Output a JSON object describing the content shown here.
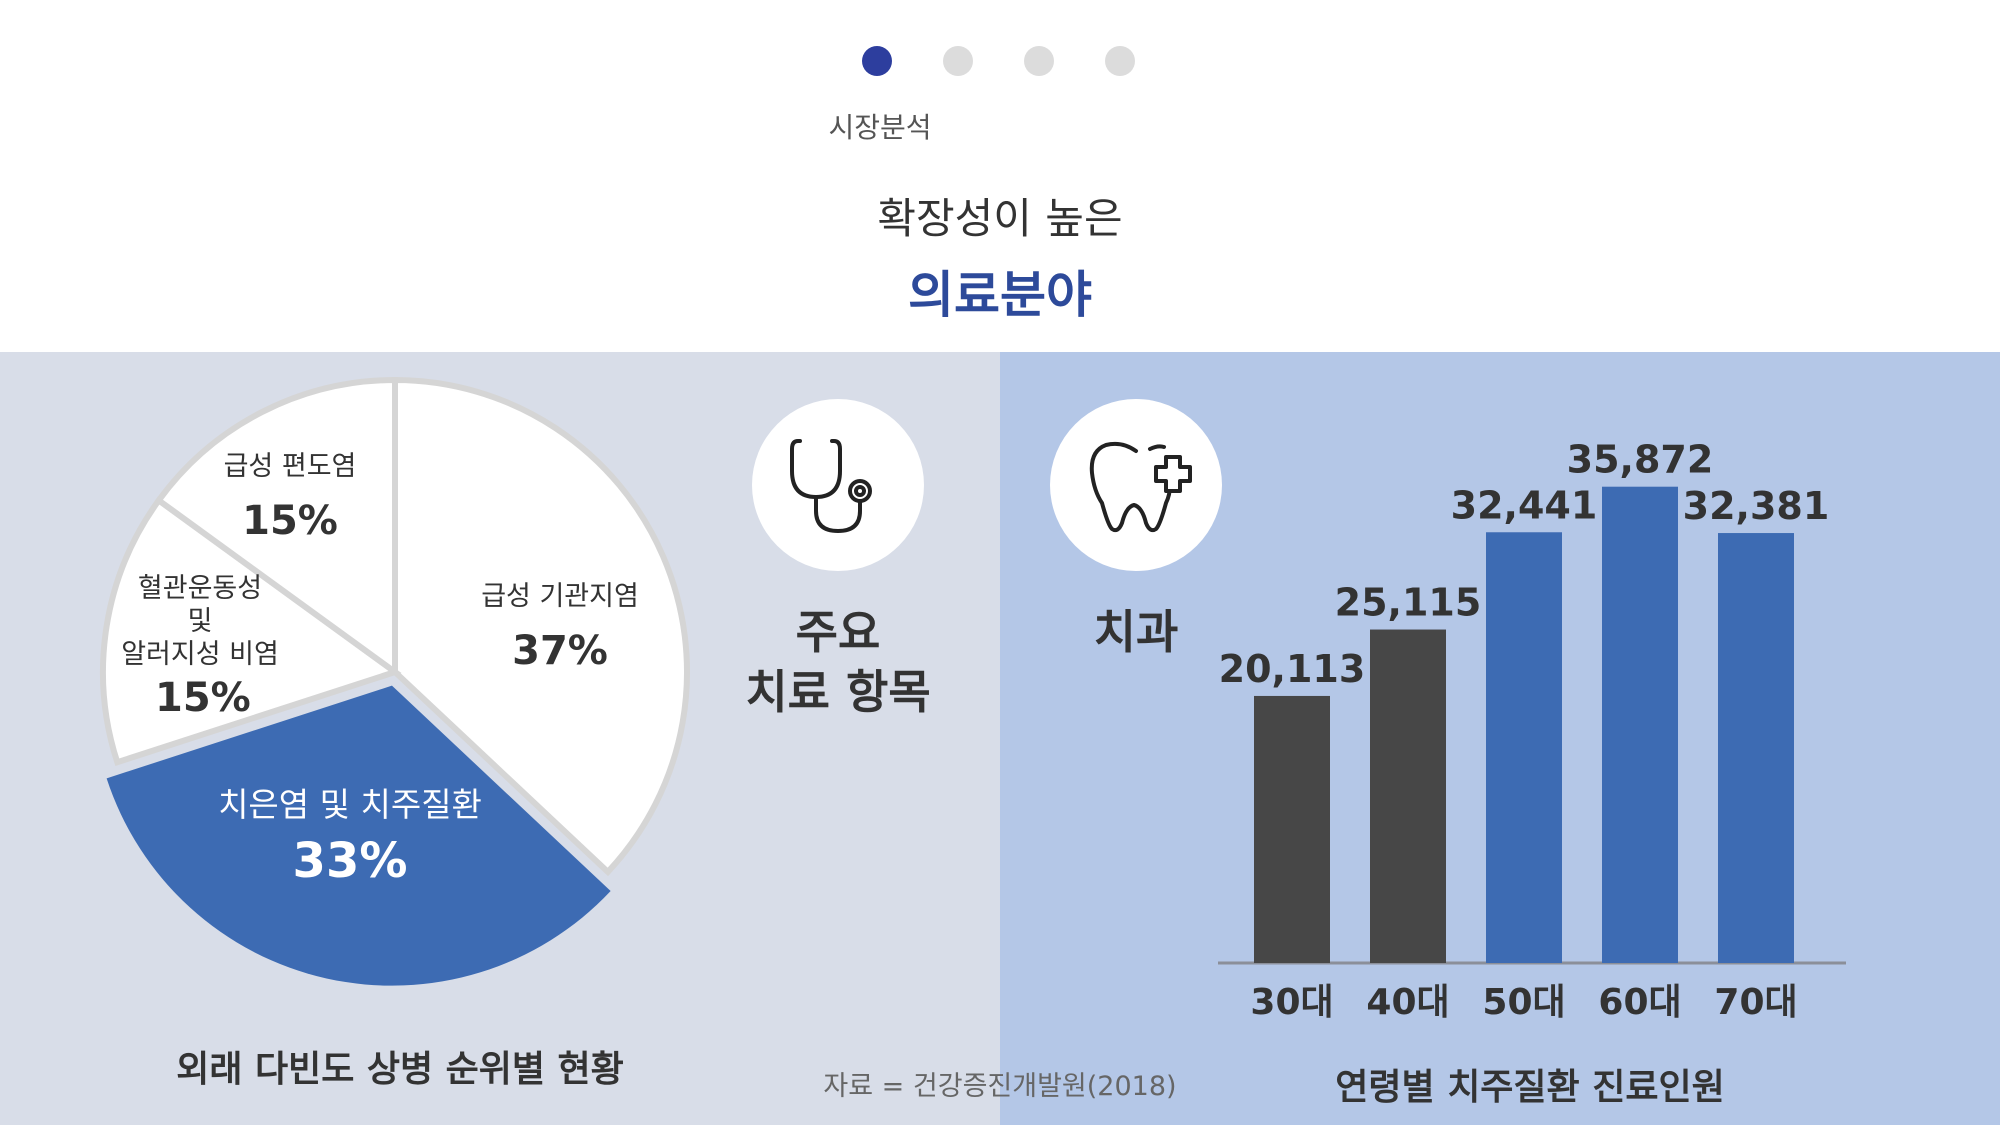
{
  "header": {
    "steps": [
      {
        "label": "시장분석",
        "active": true
      },
      {
        "label": "",
        "active": false
      },
      {
        "label": "",
        "active": false
      },
      {
        "label": "",
        "active": false
      }
    ],
    "active_step_label": "시장분석",
    "headline": "확장성이 높은",
    "headline_accent": "의료분야"
  },
  "colors": {
    "accent": "#2d4a9a",
    "highlight_blue": "#3d6bb3",
    "dark_bar": "#474747",
    "left_panel_bg": "#d8dde8",
    "right_panel_bg": "#b4c7e7"
  },
  "left": {
    "icon": "stethoscope-icon",
    "label_line1": "주요",
    "label_line2": "치료 항목"
  },
  "right": {
    "icon": "tooth-plus-icon",
    "label": "치과"
  },
  "source": "자료 = 건강증진개발원(2018)",
  "chart_data": [
    {
      "type": "pie",
      "title": "외래 다빈도 상병 순위별 현황",
      "slices": [
        {
          "label": "급성 기관지염",
          "value": 37,
          "value_label": "37%",
          "highlight": false
        },
        {
          "label": "치은염 및 치주질환",
          "value": 33,
          "value_label": "33%",
          "highlight": true
        },
        {
          "label": "혈관운동성\n및\n알러지성 비염",
          "value": 15,
          "value_label": "15%",
          "highlight": false
        },
        {
          "label": "급성 편도염",
          "value": 15,
          "value_label": "15%",
          "highlight": false
        }
      ]
    },
    {
      "type": "bar",
      "title": "연령별 치주질환 진료인원",
      "categories": [
        "30대",
        "40대",
        "50대",
        "60대",
        "70대"
      ],
      "values": [
        20113,
        25115,
        32441,
        35872,
        32381
      ],
      "value_labels": [
        "20,113",
        "25,115",
        "32,441",
        "35,872",
        "32,381"
      ],
      "bar_colors": [
        "#474747",
        "#474747",
        "#3d6bb3",
        "#3d6bb3",
        "#3d6bb3"
      ],
      "ylim": [
        0,
        36000
      ]
    }
  ]
}
